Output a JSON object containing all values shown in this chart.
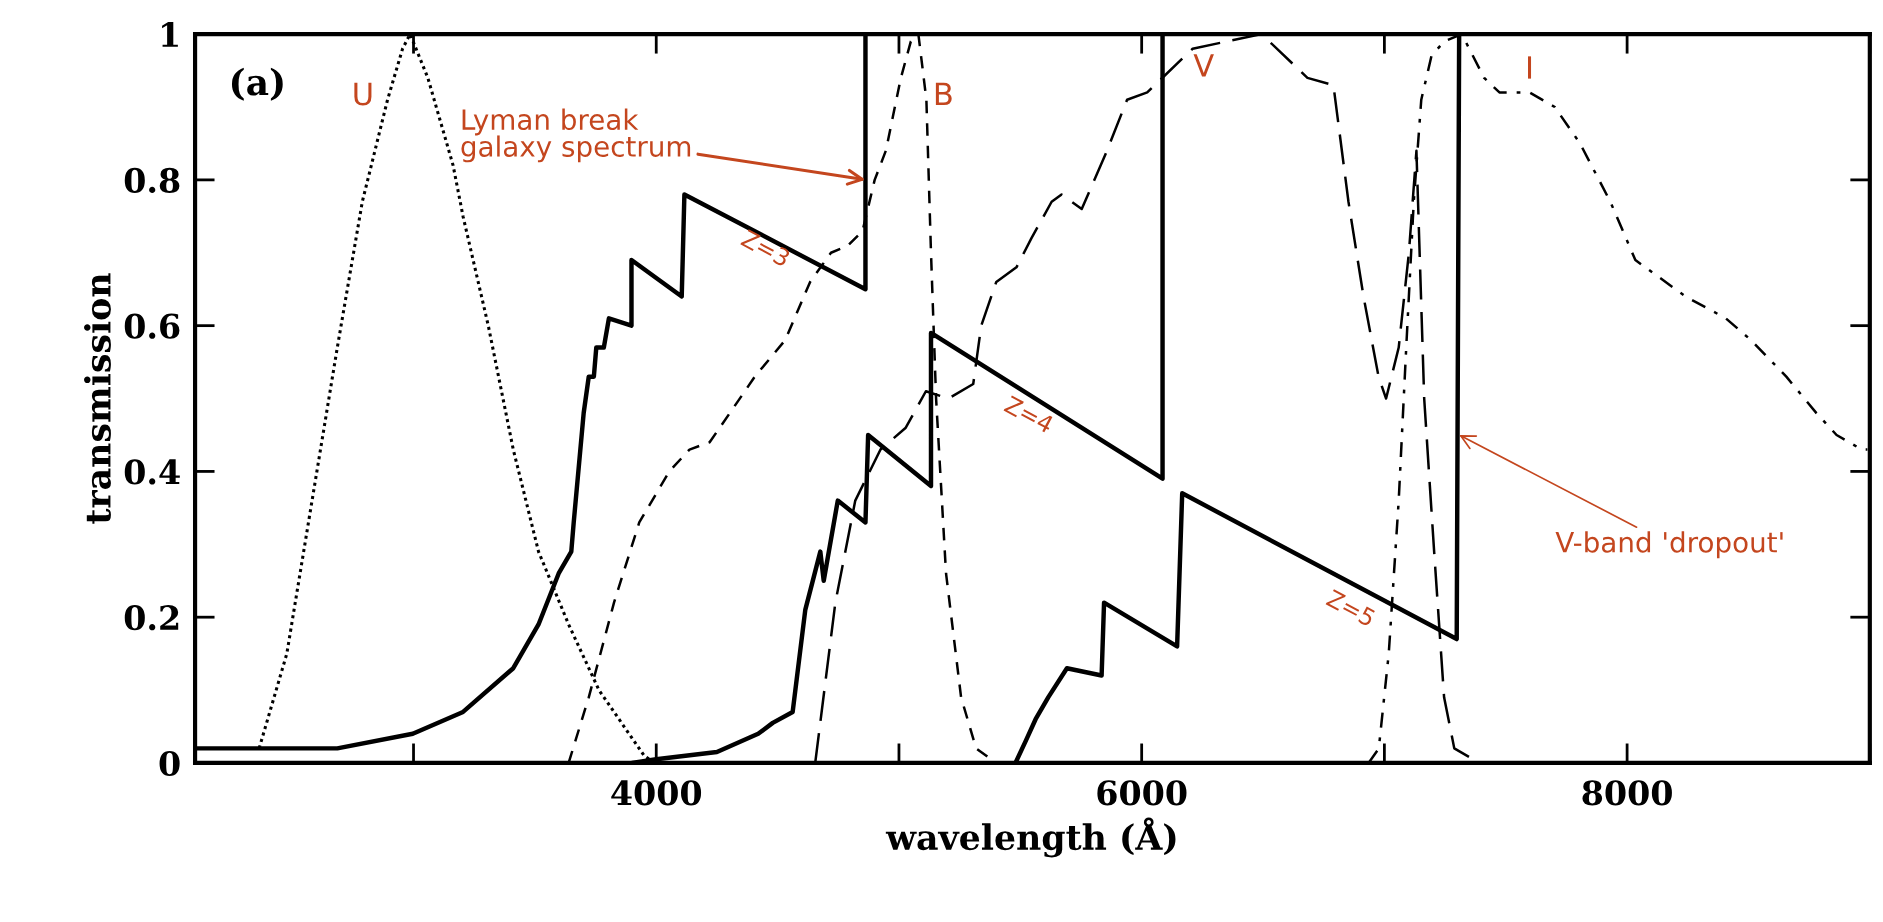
{
  "chart_data": {
    "type": "line",
    "xlabel": "wavelength (Å)",
    "ylabel": "transmission",
    "xlim": [
      2100,
      9000
    ],
    "ylim": [
      0,
      1
    ],
    "xticks": [
      4000,
      6000,
      8000
    ],
    "yticks": [
      0,
      0.2,
      0.4,
      0.6,
      0.8,
      1
    ],
    "grid": false,
    "marker": "none",
    "annotations": [
      "(a)",
      {
        "text": "Lyman break\ngalaxy spectrum",
        "x": 4862,
        "y": 0.8
      },
      {
        "text": "V-band 'dropout'",
        "x": 7308,
        "y": 0.45
      }
    ],
    "series": [
      {
        "name": "U",
        "color": "#000000",
        "line_style": "dotted",
        "x": [
          2364,
          2478,
          2582,
          2686,
          2789,
          2893,
          2955,
          2986,
          3059,
          3163,
          3204,
          3308,
          3411,
          3515,
          3639,
          3764,
          3888,
          3950,
          3992
        ],
        "values": [
          0.02,
          0.15,
          0.36,
          0.57,
          0.77,
          0.91,
          0.98,
          1.0,
          0.94,
          0.82,
          0.75,
          0.6,
          0.43,
          0.29,
          0.19,
          0.1,
          0.04,
          0.01,
          0
        ]
      },
      {
        "name": "B",
        "color": "#000000",
        "line_style": "dashed",
        "x": [
          3639,
          3722,
          3826,
          3930,
          4054,
          4137,
          4220,
          4303,
          4406,
          4531,
          4634,
          4720,
          4790,
          4850,
          4900,
          4946,
          5008,
          5049,
          5080,
          5113,
          5132,
          5153,
          5194,
          5256,
          5318,
          5401,
          5505
        ],
        "values": [
          0,
          0.09,
          0.22,
          0.33,
          0.4,
          0.43,
          0.44,
          0.48,
          0.53,
          0.58,
          0.66,
          0.7,
          0.71,
          0.73,
          0.8,
          0.84,
          0.94,
          0.99,
          1.0,
          0.91,
          0.7,
          0.5,
          0.26,
          0.09,
          0.02,
          0,
          0
        ]
      },
      {
        "name": "V",
        "color": "#000000",
        "line_style": "longdash",
        "x": [
          4655,
          4738,
          4820,
          4924,
          5028,
          5111,
          5204,
          5306,
          5339,
          5401,
          5484,
          5546,
          5629,
          5670,
          5753,
          5857,
          5940,
          6023,
          6210,
          6494,
          6683,
          6790,
          6852,
          6914,
          6976,
          7007,
          7059,
          7101,
          7132,
          7164,
          7205,
          7246,
          7288,
          7392
        ],
        "values": [
          0,
          0.22,
          0.36,
          0.43,
          0.46,
          0.51,
          0.5,
          0.52,
          0.6,
          0.66,
          0.68,
          0.72,
          0.77,
          0.78,
          0.76,
          0.84,
          0.91,
          0.92,
          0.98,
          1.0,
          0.94,
          0.93,
          0.77,
          0.64,
          0.53,
          0.5,
          0.57,
          0.7,
          0.84,
          0.5,
          0.29,
          0.09,
          0.02,
          0
        ]
      },
      {
        "name": "I",
        "color": "#000000",
        "line_style": "dashdot",
        "x": [
          6935,
          6977,
          7018,
          7059,
          7090,
          7121,
          7152,
          7194,
          7246,
          7319,
          7411,
          7474,
          7598,
          7702,
          7806,
          7931,
          8034,
          8117,
          8241,
          8407,
          8511,
          8656,
          8780,
          8863,
          8967,
          8990
        ],
        "values": [
          0,
          0.02,
          0.15,
          0.36,
          0.57,
          0.77,
          0.91,
          0.97,
          0.99,
          1.0,
          0.94,
          0.92,
          0.92,
          0.9,
          0.85,
          0.77,
          0.69,
          0.67,
          0.64,
          0.61,
          0.58,
          0.53,
          0.48,
          0.45,
          0.43,
          0.43
        ]
      },
      {
        "name": "Z=3",
        "color": "#000000",
        "line_style": "solid",
        "x": [
          2100,
          2686,
          2997,
          3204,
          3411,
          3515,
          3598,
          3650,
          3660,
          3701,
          3722,
          3743,
          3753,
          3784,
          3805,
          3898,
          3898,
          4105,
          4116,
          4862,
          4862
        ],
        "values": [
          0.02,
          0.02,
          0.04,
          0.07,
          0.13,
          0.19,
          0.26,
          0.29,
          0.33,
          0.48,
          0.53,
          0.53,
          0.57,
          0.57,
          0.61,
          0.6,
          0.69,
          0.64,
          0.78,
          0.65,
          1.0
        ]
      },
      {
        "name": "Z=4",
        "color": "#000000",
        "line_style": "solid",
        "x": [
          3900,
          4000,
          4250,
          4420,
          4480,
          4562,
          4614,
          4676,
          4690,
          4748,
          4862,
          4873,
          5132,
          5132,
          6086,
          6086
        ],
        "values": [
          0,
          0.005,
          0.015,
          0.04,
          0.055,
          0.07,
          0.21,
          0.29,
          0.25,
          0.36,
          0.33,
          0.45,
          0.38,
          0.59,
          0.39,
          1.0
        ]
      },
      {
        "name": "Z=5",
        "color": "#000000",
        "line_style": "solid",
        "x": [
          5480,
          5522,
          5563,
          5615,
          5692,
          5835,
          5845,
          6146,
          6167,
          7298,
          7308
        ],
        "values": [
          0,
          0.03,
          0.06,
          0.09,
          0.13,
          0.12,
          0.22,
          0.16,
          0.37,
          0.17,
          1.0
        ]
      }
    ]
  }
}
